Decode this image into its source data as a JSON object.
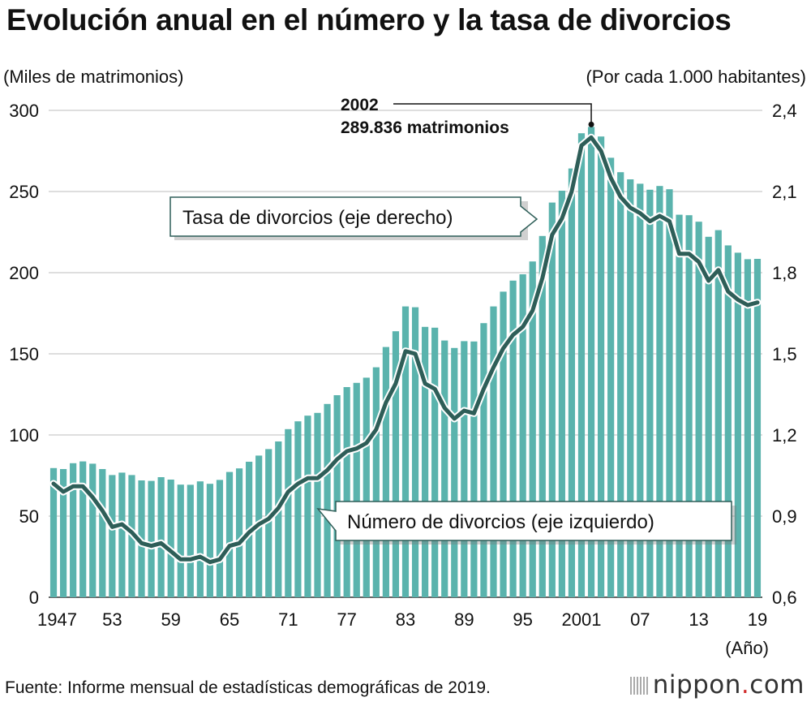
{
  "title": "Evolución anual en el número y la tasa de divorcios",
  "left_axis_label": "(Miles de matrimonios)",
  "right_axis_label": "(Por cada 1.000 habitantes)",
  "x_unit_label": "(Año)",
  "source": "Fuente: Informe mensual de estadísticas demográficas de 2019.",
  "brand": {
    "name": "nippon",
    "dot": ".",
    "suffix": "com"
  },
  "colors": {
    "bar": "#5ab3ad",
    "line": "#2e5e58",
    "callout_border": "#2e5e58"
  },
  "chart_data": {
    "type": "bar+line",
    "title": "Evolución anual en el número y la tasa de divorcios",
    "years": [
      1947,
      1948,
      1949,
      1950,
      1951,
      1952,
      1953,
      1954,
      1955,
      1956,
      1957,
      1958,
      1959,
      1960,
      1961,
      1962,
      1963,
      1964,
      1965,
      1966,
      1967,
      1968,
      1969,
      1970,
      1971,
      1972,
      1973,
      1974,
      1975,
      1976,
      1977,
      1978,
      1979,
      1980,
      1981,
      1982,
      1983,
      1984,
      1985,
      1986,
      1987,
      1988,
      1989,
      1990,
      1991,
      1992,
      1993,
      1994,
      1995,
      1996,
      1997,
      1998,
      1999,
      2000,
      2001,
      2002,
      2003,
      2004,
      2005,
      2006,
      2007,
      2008,
      2009,
      2010,
      2011,
      2012,
      2013,
      2014,
      2015,
      2016,
      2017,
      2018,
      2019
    ],
    "x_tick_labels": [
      {
        "year": 1947,
        "label": "1947"
      },
      {
        "year": 1953,
        "label": "53"
      },
      {
        "year": 1959,
        "label": "59"
      },
      {
        "year": 1965,
        "label": "65"
      },
      {
        "year": 1971,
        "label": "71"
      },
      {
        "year": 1977,
        "label": "77"
      },
      {
        "year": 1983,
        "label": "83"
      },
      {
        "year": 1989,
        "label": "89"
      },
      {
        "year": 1995,
        "label": "95"
      },
      {
        "year": 2001,
        "label": "2001"
      },
      {
        "year": 2007,
        "label": "07"
      },
      {
        "year": 2013,
        "label": "13"
      },
      {
        "year": 2019,
        "label": "19"
      }
    ],
    "series": [
      {
        "name": "Número de divorcios (eje izquierdo)",
        "type": "bar",
        "axis": "left",
        "values": [
          79.6,
          79.0,
          82.6,
          83.7,
          82.3,
          79.0,
          75.3,
          76.8,
          75.3,
          72.0,
          71.7,
          74.0,
          72.5,
          69.4,
          69.3,
          71.4,
          69.9,
          72.3,
          77.2,
          79.4,
          83.5,
          87.3,
          91.3,
          96.0,
          103.6,
          108.4,
          111.9,
          113.6,
          119.1,
          124.5,
          129.5,
          132.1,
          135.3,
          141.7,
          154.2,
          163.9,
          179.2,
          178.7,
          166.6,
          166.1,
          158.2,
          153.6,
          157.8,
          157.6,
          168.9,
          179.2,
          188.3,
          195.1,
          199.0,
          206.9,
          222.6,
          243.2,
          250.5,
          264.2,
          285.9,
          289.8,
          283.9,
          270.8,
          261.9,
          257.5,
          254.8,
          251.1,
          253.4,
          251.4,
          235.7,
          235.4,
          231.4,
          222.1,
          226.2,
          216.8,
          212.3,
          208.3,
          208.5
        ]
      },
      {
        "name": "Tasa de divorcios (eje derecho)",
        "type": "line",
        "axis": "right",
        "values": [
          1.02,
          0.99,
          1.01,
          1.01,
          0.97,
          0.92,
          0.86,
          0.87,
          0.84,
          0.8,
          0.79,
          0.8,
          0.77,
          0.74,
          0.74,
          0.75,
          0.73,
          0.74,
          0.79,
          0.8,
          0.84,
          0.87,
          0.89,
          0.93,
          0.99,
          1.02,
          1.04,
          1.04,
          1.07,
          1.11,
          1.14,
          1.15,
          1.17,
          1.22,
          1.32,
          1.39,
          1.51,
          1.5,
          1.39,
          1.37,
          1.3,
          1.26,
          1.29,
          1.28,
          1.37,
          1.45,
          1.52,
          1.57,
          1.6,
          1.66,
          1.78,
          1.94,
          2.0,
          2.1,
          2.27,
          2.3,
          2.25,
          2.15,
          2.08,
          2.04,
          2.02,
          1.99,
          2.01,
          1.99,
          1.87,
          1.87,
          1.84,
          1.77,
          1.81,
          1.73,
          1.7,
          1.68,
          1.69
        ]
      }
    ],
    "left_axis": {
      "min": 0,
      "max": 300,
      "ticks": [
        0,
        50,
        100,
        150,
        200,
        250,
        300
      ]
    },
    "right_axis": {
      "min": 0.6,
      "max": 2.4,
      "ticks": [
        "0,6",
        "0,9",
        "1,2",
        "1,5",
        "1,8",
        "2,1",
        "2,4"
      ]
    },
    "left_tick_labels": [
      "0",
      "50",
      "100",
      "150",
      "200",
      "250",
      "300"
    ],
    "gridlines": true,
    "annotation": {
      "year": 2002,
      "line1": "2002",
      "line2": "289.836 matrimonios"
    },
    "callouts": {
      "rate": "Tasa de divorcios (eje derecho)",
      "count": "Número de divorcios (eje izquierdo)"
    }
  }
}
